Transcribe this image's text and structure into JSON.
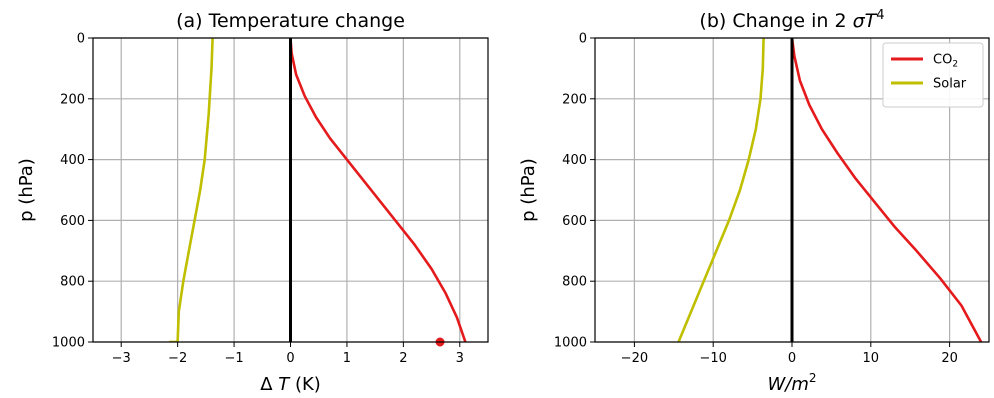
{
  "chart_data": [
    {
      "type": "line",
      "title": "(a) Temperature change",
      "xlabel": "Δ T (K)",
      "ylabel": "p (hPa)",
      "xlim": [
        -3.5,
        3.5
      ],
      "ylim": [
        1000,
        0
      ],
      "xticks": [
        -3,
        -2,
        -1,
        0,
        1,
        2,
        3
      ],
      "xtick_labels": [
        "−3",
        "−2",
        "−1",
        "0",
        "1",
        "2",
        "3"
      ],
      "yticks": [
        0,
        200,
        400,
        600,
        800,
        1000
      ],
      "ytick_labels": [
        "0",
        "200",
        "400",
        "600",
        "800",
        "1000"
      ],
      "grid": true,
      "legend": null,
      "series": [
        {
          "color": "#e41a1c",
          "x": [
            0.0,
            0.02,
            0.1,
            0.25,
            0.45,
            0.7,
            1.0,
            1.3,
            1.6,
            1.9,
            2.2,
            2.5,
            2.75,
            2.95,
            3.1
          ],
          "y": [
            0,
            50,
            120,
            190,
            260,
            330,
            400,
            470,
            540,
            610,
            680,
            760,
            840,
            920,
            1000
          ]
        },
        {
          "color": "#bfbf00",
          "x": [
            -1.38,
            -1.4,
            -1.45,
            -1.52,
            -1.6,
            -1.7,
            -1.8,
            -1.9,
            -1.98,
            -2.0
          ],
          "y": [
            0,
            100,
            250,
            400,
            500,
            600,
            700,
            800,
            900,
            1000
          ]
        },
        {
          "color": "#bfbf00",
          "x": [
            -2.15,
            -1.98
          ],
          "y": [
            1000,
            1000
          ]
        },
        {
          "color": "#000000",
          "x": [
            0,
            0
          ],
          "y": [
            0,
            1000
          ]
        }
      ],
      "markers": [
        {
          "color": "#e41a1c",
          "x": 2.65,
          "y": 1000
        }
      ]
    },
    {
      "type": "line",
      "title": "(b) Change in 2 σT⁴",
      "xlabel": "W/m²",
      "ylabel": "p (hPa)",
      "xlim": [
        -25,
        25
      ],
      "ylim": [
        1000,
        0
      ],
      "xticks": [
        -20,
        -10,
        0,
        10,
        20
      ],
      "xtick_labels": [
        "−20",
        "−10",
        "0",
        "10",
        "20"
      ],
      "yticks": [
        0,
        200,
        400,
        600,
        800,
        1000
      ],
      "ytick_labels": [
        "0",
        "200",
        "400",
        "600",
        "800",
        "1000"
      ],
      "grid": true,
      "legend": "top-right",
      "series": [
        {
          "name": "CO₂",
          "color": "#e41a1c",
          "x": [
            0.0,
            0.3,
            1.0,
            2.2,
            3.8,
            5.8,
            8.0,
            10.5,
            13.0,
            15.8,
            18.8,
            21.5,
            24.0
          ],
          "y": [
            0,
            60,
            140,
            220,
            300,
            380,
            460,
            540,
            620,
            700,
            790,
            880,
            1000
          ]
        },
        {
          "name": "Solar",
          "color": "#bfbf00",
          "x": [
            -3.6,
            -3.7,
            -4.0,
            -4.6,
            -5.5,
            -6.6,
            -8.0,
            -9.6,
            -11.2,
            -12.8,
            -14.4
          ],
          "y": [
            0,
            100,
            200,
            300,
            400,
            500,
            600,
            700,
            800,
            900,
            1000
          ]
        },
        {
          "color": "#000000",
          "x": [
            0,
            0
          ],
          "y": [
            0,
            1000
          ]
        }
      ]
    }
  ]
}
